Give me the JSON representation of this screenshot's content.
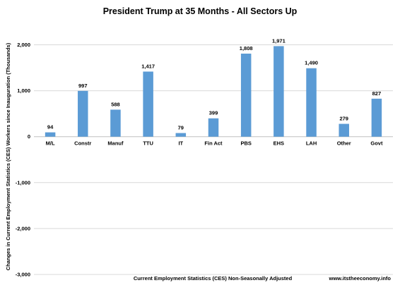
{
  "chart_data": {
    "type": "bar",
    "title": "President Trump at 35 Months - All Sectors Up",
    "ylabel": "Changes in Current Employment Statistics (CES) Workers since Inauguration (Thousands)",
    "xlabel": "Current Employment Statistics (CES) Non-Seasonally Adjusted",
    "source": "www.itstheeconomy.info",
    "categories": [
      "M/L",
      "Constr",
      "Manuf",
      "TTU",
      "IT",
      "Fin Act",
      "PBS",
      "EHS",
      "LAH",
      "Other",
      "Govt"
    ],
    "values": [
      94,
      997,
      588,
      1417,
      79,
      399,
      1808,
      1971,
      1490,
      279,
      827
    ],
    "data_labels": [
      "94",
      "997",
      "588",
      "1,417",
      "79",
      "399",
      "1,808",
      "1,971",
      "1,490",
      "279",
      "827"
    ],
    "ylim": [
      -3000,
      2000
    ],
    "yticks": [
      -3000,
      -2000,
      -1000,
      0,
      1000,
      2000
    ],
    "ytick_labels": [
      "-3,000",
      "-2,000",
      "-1,000",
      "0",
      "1,000",
      "2,000"
    ],
    "grid": true,
    "bar_color": "#5b9bd5",
    "grid_color": "#d9d9d9"
  }
}
